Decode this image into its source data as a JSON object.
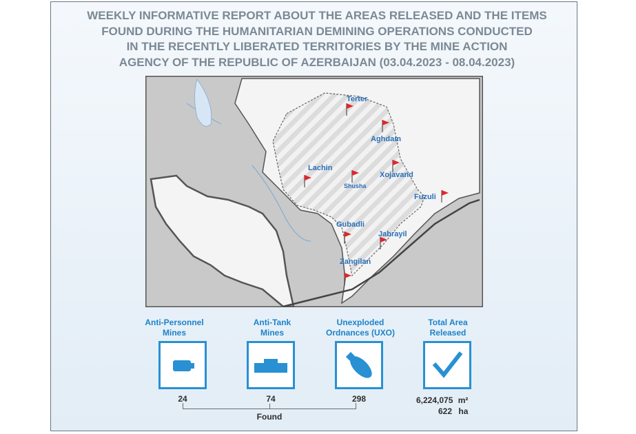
{
  "title_lines": [
    "WEEKLY INFORMATIVE REPORT ABOUT THE AREAS RELEASED AND THE ITEMS",
    "FOUND DURING THE HUMANITARIAN DEMINING OPERATIONS CONDUCTED",
    "IN THE RECENTLY LIBERATED TERRITORIES BY THE MINE ACTION",
    "AGENCY OF THE REPUBLIC OF AZERBAIJAN (03.04.2023 - 08.04.2023)"
  ],
  "cities": [
    "Terter",
    "Aghdam",
    "Lachin",
    "Shusha",
    "Xojavand",
    "Fuzuli",
    "Gubadli",
    "Jabrayil",
    "Zangilan"
  ],
  "stats": [
    {
      "label_line1": "Anti-Personnel",
      "label_line2": "Mines",
      "icon": "anti-personnel-mine-icon",
      "value": "24"
    },
    {
      "label_line1": "Anti-Tank",
      "label_line2": "Mines",
      "icon": "anti-tank-mine-icon",
      "value": "74"
    },
    {
      "label_line1": "Unexploded",
      "label_line2": "Ordnances (UXO)",
      "icon": "uxo-bomb-icon",
      "value": "298"
    },
    {
      "label_line1": "Total Area",
      "label_line2": "Released",
      "icon": "checkmark-icon",
      "value": ""
    }
  ],
  "found_label": "Found",
  "total_area": {
    "m2_value": "6,224,075",
    "m2_unit": "m²",
    "ha_value": "622",
    "ha_unit": "ha"
  },
  "colors": {
    "accent": "#2890d3",
    "title": "#7b8994",
    "flag": "#e0262b",
    "city": "#2a6fb8"
  }
}
